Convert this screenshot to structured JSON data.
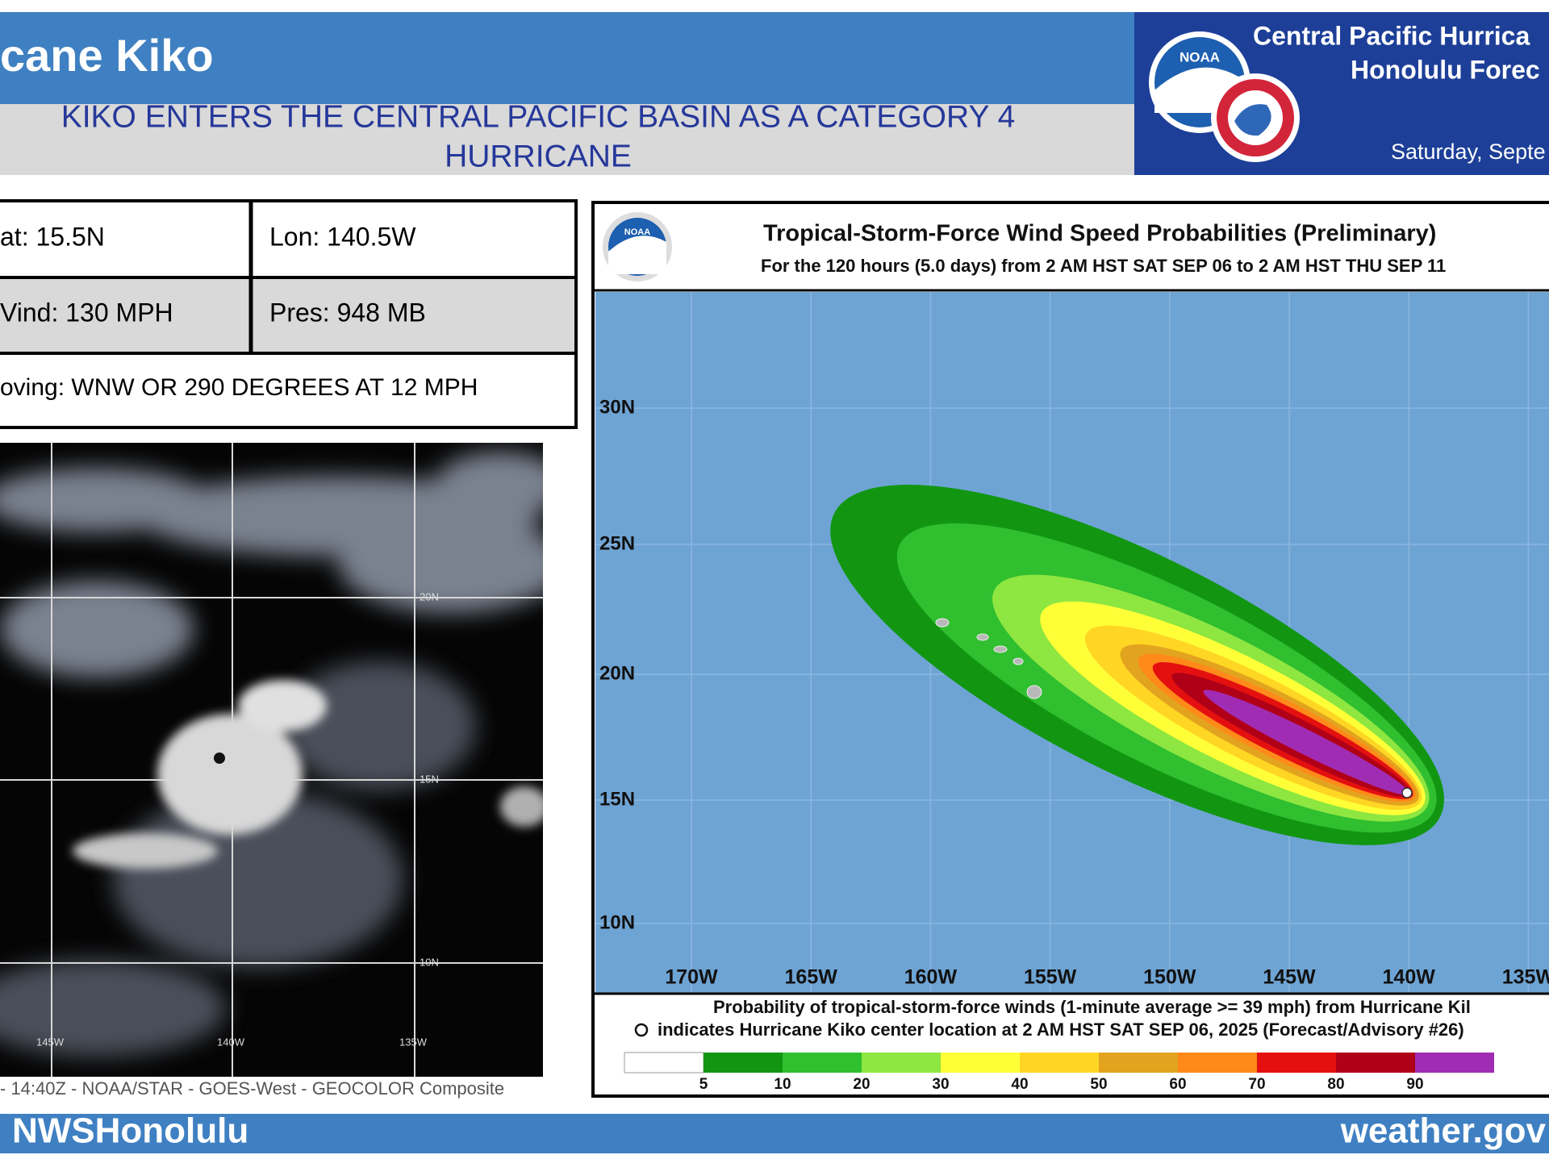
{
  "header": {
    "title": "cane Kiko",
    "subtitle_lines": [
      "KIKO ENTERS THE CENTRAL PACIFIC BASIN AS A CATEGORY 4",
      "HURRICANE"
    ],
    "office_lines": [
      "Central Pacific Hurrica",
      "Honolulu Forec"
    ],
    "date": "Saturday, Septe",
    "noaa_logo": "NOAA"
  },
  "info_table": {
    "rows": [
      [
        "at: 15.5N",
        "Lon: 140.5W"
      ],
      [
        "Vind: 130 MPH",
        "Pres: 948 MB"
      ],
      [
        "oving: WNW OR 290 DEGREES AT 12 MPH"
      ]
    ]
  },
  "satellite": {
    "lat_labels": [
      "20N",
      "15N",
      "10N"
    ],
    "lon_labels": [
      "145W",
      "140W",
      "135W"
    ],
    "caption": "- 14:40Z - NOAA/STAR - GOES-West - GEOCOLOR Composite"
  },
  "map": {
    "logo": "NOAA",
    "title": "Tropical-Storm-Force Wind Speed Probabilities (Preliminary)",
    "subtitle": "For the 120 hours (5.0 days) from 2 AM HST SAT SEP 06 to 2 AM HST THU SEP 11",
    "lat_labels": [
      "30N",
      "25N",
      "20N",
      "15N",
      "10N"
    ],
    "lon_labels": [
      "170W",
      "165W",
      "160W",
      "155W",
      "150W",
      "145W",
      "140W",
      "135W"
    ],
    "legend_line1": "Probability of tropical-storm-force winds (1-minute average >= 39 mph) from Hurricane Kil",
    "legend_line2": "indicates Hurricane Kiko center location at 2 AM HST SAT SEP 06, 2025 (Forecast/Advisory #26)",
    "legend_labels": [
      "5",
      "10",
      "20",
      "30",
      "40",
      "50",
      "60",
      "70",
      "80",
      "90"
    ]
  },
  "footer": {
    "left": "NWSHonolulu",
    "right": "weather.gov"
  }
}
